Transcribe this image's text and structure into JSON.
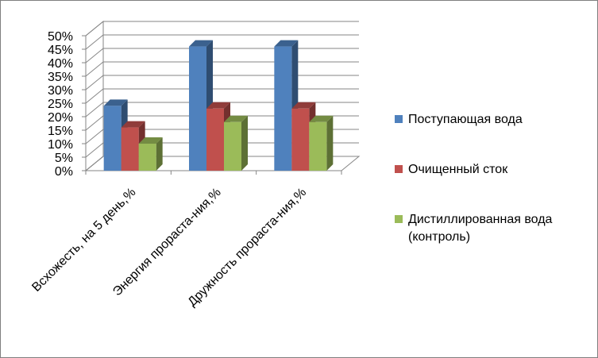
{
  "chart_data": {
    "type": "bar",
    "three_d": true,
    "categories": [
      "Всхожесть,  на 5 день,%",
      "Энергия прораста-ния,%",
      "Дружность прораста-ния,%"
    ],
    "series": [
      {
        "name": "Поступающая вода",
        "values": [
          24,
          46,
          46
        ],
        "color": "#4f81bd"
      },
      {
        "name": "Очищенный сток",
        "values": [
          16,
          23,
          23
        ],
        "color": "#c0504d"
      },
      {
        "name": "Дистиллированная вода (контроль)",
        "values": [
          10,
          18,
          18
        ],
        "color": "#9bbb59"
      }
    ],
    "yticks": [
      "0%",
      "5%",
      "10%",
      "15%",
      "20%",
      "25%",
      "30%",
      "35%",
      "40%",
      "45%",
      "50%"
    ],
    "ylim": [
      0,
      50
    ],
    "grid": true,
    "legend_position": "right"
  }
}
